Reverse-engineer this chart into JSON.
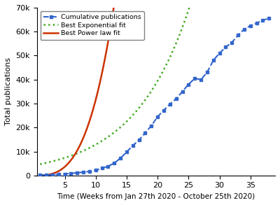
{
  "xlabel": "Time (Weeks from Jan 27th 2020 - October 25th 2020)",
  "ylabel": "Total publications",
  "xlim": [
    0.5,
    39
  ],
  "ylim": [
    0,
    70000
  ],
  "xticks": [
    5,
    10,
    15,
    20,
    25,
    30,
    35
  ],
  "yticks": [
    0,
    10000,
    20000,
    30000,
    40000,
    50000,
    60000,
    70000
  ],
  "ytick_labels": [
    "0",
    "10k",
    "20k",
    "30k",
    "40k",
    "50k",
    "60k",
    "70k"
  ],
  "cumulative_weeks": [
    1,
    2,
    3,
    4,
    5,
    6,
    7,
    8,
    9,
    10,
    11,
    12,
    13,
    14,
    15,
    16,
    17,
    18,
    19,
    20,
    21,
    22,
    23,
    24,
    25,
    26,
    27,
    28,
    29,
    30,
    31,
    32,
    33,
    34,
    35,
    36,
    37,
    38
  ],
  "cumulative_values": [
    100,
    200,
    300,
    450,
    650,
    900,
    1100,
    1400,
    1700,
    2200,
    3000,
    3800,
    5200,
    7200,
    9800,
    12500,
    14800,
    17800,
    20800,
    24500,
    27200,
    29800,
    32000,
    35000,
    38000,
    40500,
    40000,
    43000,
    48000,
    51000,
    53500,
    55500,
    58500,
    61000,
    62500,
    63500,
    64800,
    65500
  ],
  "exp_color": "#44aa22",
  "power_color": "#cc3300",
  "cum_color": "#3366cc",
  "cum_marker": "s",
  "cum_linestyle": "--",
  "exp_linestyle": ":",
  "power_linestyle": "-",
  "legend_labels": [
    "Cumulative publications",
    "Best Exponential fit",
    "Best Power law fit"
  ],
  "exp_a": 4200,
  "exp_b": 0.112,
  "power_a": 24.0,
  "power_b": 3.12,
  "x_smooth_start": 1.0,
  "x_smooth_end": 38.5
}
